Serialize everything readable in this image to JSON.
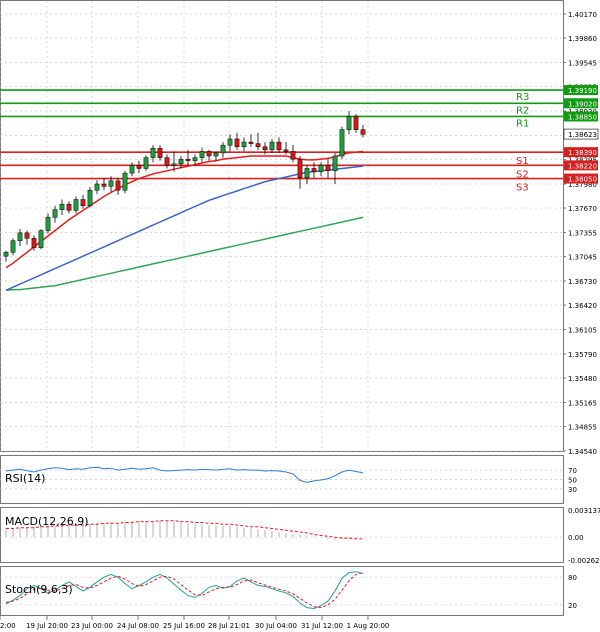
{
  "chart_data": [
    {
      "type": "candlestick",
      "panel": "main",
      "y_ticks": [
        "1.40170",
        "1.39860",
        "1.39545",
        "1.39235",
        "1.38920",
        "1.38605",
        "1.38295",
        "1.37980",
        "1.37670",
        "1.37355",
        "1.37045",
        "1.36730",
        "1.36420",
        "1.36105",
        "1.35790",
        "1.35480",
        "1.35165",
        "1.34855",
        "1.34540"
      ],
      "ylim": [
        1.345,
        1.4027
      ],
      "current_price": {
        "label": "1.38623",
        "value": 1.38623
      },
      "levels": [
        {
          "name": "R3",
          "label": "1.39190",
          "value": 1.3919,
          "color": "#119b11"
        },
        {
          "name": "R2",
          "label": "1.39020",
          "value": 1.3902,
          "color": "#119b11"
        },
        {
          "name": "R1",
          "label": "1.38850",
          "value": 1.3885,
          "color": "#119b11"
        },
        {
          "name": "S1",
          "label": "1.38390",
          "value": 1.3839,
          "color": "#d42020"
        },
        {
          "name": "S2",
          "label": "1.38220",
          "value": 1.3822,
          "color": "#d42020"
        },
        {
          "name": "S3",
          "label": "1.38050",
          "value": 1.3805,
          "color": "#d42020"
        }
      ],
      "x_labels": [
        "2:00",
        "19 Jul 20:00",
        "23 Jul 00:00",
        "24 Jul 08:00",
        "25 Jul 16:00",
        "28 Jul 21:01",
        "30 Jul 04:00",
        "31 Jul 12:00",
        "1 Aug 20:00"
      ],
      "colors": {
        "bull": "#1f9e3c",
        "bear": "#d81818",
        "ma_fast": "#e41c1c",
        "ma_mid": "#3b63c9",
        "ma_slow": "#2ea856",
        "grid": "#c8c8c8"
      },
      "candles": [
        [
          1.3705,
          1.3712,
          1.3698,
          1.371
        ],
        [
          1.371,
          1.3728,
          1.3706,
          1.3725
        ],
        [
          1.3725,
          1.374,
          1.3718,
          1.3735
        ],
        [
          1.3735,
          1.3738,
          1.372,
          1.3728
        ],
        [
          1.3728,
          1.3732,
          1.3712,
          1.3716
        ],
        [
          1.3716,
          1.374,
          1.3714,
          1.3738
        ],
        [
          1.3738,
          1.376,
          1.3734,
          1.3755
        ],
        [
          1.3755,
          1.377,
          1.3748,
          1.3765
        ],
        [
          1.3765,
          1.3778,
          1.3758,
          1.3772
        ],
        [
          1.3772,
          1.3776,
          1.376,
          1.3764
        ],
        [
          1.3764,
          1.3782,
          1.376,
          1.3778
        ],
        [
          1.3778,
          1.3784,
          1.3766,
          1.377
        ],
        [
          1.377,
          1.3794,
          1.3768,
          1.379
        ],
        [
          1.379,
          1.3803,
          1.3785,
          1.3798
        ],
        [
          1.3798,
          1.3806,
          1.379,
          1.3795
        ],
        [
          1.3795,
          1.3808,
          1.3788,
          1.3802
        ],
        [
          1.3802,
          1.3806,
          1.3784,
          1.379
        ],
        [
          1.379,
          1.3815,
          1.3786,
          1.3812
        ],
        [
          1.3812,
          1.3826,
          1.3808,
          1.3822
        ],
        [
          1.3822,
          1.3828,
          1.3812,
          1.3818
        ],
        [
          1.3818,
          1.3835,
          1.3815,
          1.3832
        ],
        [
          1.3832,
          1.3848,
          1.3826,
          1.3844
        ],
        [
          1.3844,
          1.3848,
          1.3828,
          1.3832
        ],
        [
          1.3832,
          1.3836,
          1.3818,
          1.3822
        ],
        [
          1.3822,
          1.384,
          1.3814,
          1.3824
        ],
        [
          1.3824,
          1.3834,
          1.3818,
          1.383
        ],
        [
          1.383,
          1.3842,
          1.3822,
          1.3828
        ],
        [
          1.3828,
          1.3836,
          1.3822,
          1.3832
        ],
        [
          1.3832,
          1.3845,
          1.3826,
          1.384
        ],
        [
          1.384,
          1.3842,
          1.3828,
          1.3834
        ],
        [
          1.3834,
          1.384,
          1.3828,
          1.3838
        ],
        [
          1.3838,
          1.3852,
          1.3832,
          1.3848
        ],
        [
          1.3848,
          1.3862,
          1.384,
          1.3856
        ],
        [
          1.3856,
          1.3864,
          1.3842,
          1.3846
        ],
        [
          1.3846,
          1.3858,
          1.384,
          1.3852
        ],
        [
          1.3852,
          1.3862,
          1.3846,
          1.385
        ],
        [
          1.385,
          1.3864,
          1.3842,
          1.3846
        ],
        [
          1.3846,
          1.3852,
          1.3836,
          1.3842
        ],
        [
          1.3842,
          1.3856,
          1.3838,
          1.3852
        ],
        [
          1.3852,
          1.3858,
          1.3838,
          1.3842
        ],
        [
          1.3842,
          1.3852,
          1.3836,
          1.384
        ],
        [
          1.384,
          1.3848,
          1.3826,
          1.383
        ],
        [
          1.383,
          1.3834,
          1.3792,
          1.3806
        ],
        [
          1.3806,
          1.3822,
          1.3798,
          1.3818
        ],
        [
          1.3818,
          1.3826,
          1.3806,
          1.3814
        ],
        [
          1.3814,
          1.3826,
          1.3808,
          1.3822
        ],
        [
          1.3822,
          1.383,
          1.3806,
          1.3815
        ],
        [
          1.3815,
          1.3838,
          1.3798,
          1.3834
        ],
        [
          1.3834,
          1.3872,
          1.383,
          1.3868
        ],
        [
          1.3868,
          1.3892,
          1.3862,
          1.3885
        ],
        [
          1.3885,
          1.3888,
          1.3864,
          1.3868
        ],
        [
          1.3868,
          1.3874,
          1.3858,
          1.3862
        ]
      ],
      "ma_fast": [
        1.369,
        1.3696,
        1.3703,
        1.371,
        1.3717,
        1.3724,
        1.3731,
        1.3738,
        1.3745,
        1.3752,
        1.3758,
        1.3764,
        1.377,
        1.3776,
        1.3782,
        1.3787,
        1.3792,
        1.3797,
        1.3801,
        1.3805,
        1.3808,
        1.3811,
        1.3813,
        1.3815,
        1.3817,
        1.3819,
        1.3821,
        1.3823,
        1.3825,
        1.3827,
        1.3828,
        1.383,
        1.3831,
        1.3832,
        1.3833,
        1.3834,
        1.3834,
        1.3834,
        1.3834,
        1.3834,
        1.3834,
        1.3832,
        1.383,
        1.3829,
        1.3829,
        1.383,
        1.3831,
        1.3833,
        1.3836,
        1.3838,
        1.3839,
        1.384
      ],
      "ma_mid": [
        1.3661,
        1.3665,
        1.3669,
        1.3673,
        1.3677,
        1.3681,
        1.3685,
        1.3689,
        1.3693,
        1.3697,
        1.3701,
        1.3705,
        1.3709,
        1.3713,
        1.3717,
        1.3721,
        1.3725,
        1.3729,
        1.3733,
        1.3737,
        1.3741,
        1.3745,
        1.3749,
        1.3753,
        1.3757,
        1.3761,
        1.3765,
        1.3769,
        1.3773,
        1.3777,
        1.378,
        1.3783,
        1.3786,
        1.3789,
        1.3792,
        1.3795,
        1.3798,
        1.3801,
        1.3803,
        1.3805,
        1.3807,
        1.3809,
        1.3811,
        1.3813,
        1.3814,
        1.3815,
        1.3816,
        1.3817,
        1.3818,
        1.3819,
        1.382,
        1.3821
      ],
      "ma_slow": [
        1.3661,
        1.3662,
        1.3662,
        1.3663,
        1.3664,
        1.3665,
        1.3666,
        1.3667,
        1.3669,
        1.3671,
        1.3673,
        1.3675,
        1.3677,
        1.3679,
        1.3681,
        1.3683,
        1.3685,
        1.3687,
        1.3689,
        1.3691,
        1.3693,
        1.3695,
        1.3697,
        1.3699,
        1.3701,
        1.3703,
        1.3705,
        1.3707,
        1.3709,
        1.3711,
        1.3713,
        1.3715,
        1.3717,
        1.3719,
        1.3721,
        1.3723,
        1.3725,
        1.3727,
        1.3729,
        1.3731,
        1.3733,
        1.3735,
        1.3737,
        1.3739,
        1.3741,
        1.3743,
        1.3745,
        1.3747,
        1.3749,
        1.3751,
        1.3753,
        1.3755
      ]
    },
    {
      "type": "line",
      "panel": "rsi",
      "name": "RSI(14)",
      "y_ticks": [
        "70",
        "50",
        "30"
      ],
      "ylim": [
        0,
        100
      ],
      "color": "#2f7fd6",
      "values": [
        68,
        70,
        72,
        69,
        66,
        70,
        73,
        75,
        74,
        71,
        73,
        72,
        75,
        76,
        73,
        74,
        70,
        72,
        74,
        72,
        73,
        75,
        70,
        68,
        69,
        70,
        71,
        70,
        72,
        71,
        70,
        72,
        73,
        70,
        71,
        70,
        70,
        68,
        69,
        68,
        66,
        62,
        48,
        44,
        47,
        49,
        52,
        58,
        66,
        70,
        67,
        64
      ]
    },
    {
      "type": "bar",
      "panel": "macd",
      "name": "MACD(12,26,9)",
      "y_ticks": [
        "0.003137",
        "0.00",
        "-0.002629"
      ],
      "ylim": [
        -0.002629,
        0.003137
      ],
      "histogram_color": "#b0b0b0",
      "signal_color": "#e02020",
      "histogram": [
        0.001,
        0.0011,
        0.0011,
        0.0011,
        0.0012,
        0.0012,
        0.0013,
        0.0013,
        0.0014,
        0.0014,
        0.0014,
        0.0015,
        0.0015,
        0.0016,
        0.0016,
        0.0017,
        0.0017,
        0.0017,
        0.0018,
        0.0018,
        0.0019,
        0.0019,
        0.0019,
        0.0019,
        0.0018,
        0.0017,
        0.0016,
        0.0016,
        0.0015,
        0.0014,
        0.0014,
        0.0013,
        0.0013,
        0.0012,
        0.0011,
        0.001,
        0.0009,
        0.0008,
        0.0007,
        0.0006,
        0.0005,
        0.0004,
        0.0003,
        0.0002,
        0.0001,
        0.0,
        -0.0002,
        -0.0003,
        -0.0002,
        -0.0001,
        -0.0001,
        0.0
      ],
      "signal": [
        0.001,
        0.001,
        0.0011,
        0.0011,
        0.0011,
        0.0012,
        0.0012,
        0.0013,
        0.0013,
        0.0014,
        0.0014,
        0.0014,
        0.0015,
        0.0015,
        0.0016,
        0.0016,
        0.0016,
        0.0017,
        0.0017,
        0.0018,
        0.0018,
        0.0018,
        0.0019,
        0.0019,
        0.0019,
        0.0018,
        0.0018,
        0.0017,
        0.0017,
        0.0016,
        0.0016,
        0.0015,
        0.0015,
        0.0014,
        0.0013,
        0.0012,
        0.0012,
        0.0011,
        0.001,
        0.0009,
        0.0008,
        0.0007,
        0.0006,
        0.0005,
        0.0003,
        0.0002,
        0.0001,
        0.0,
        -0.0001,
        -0.0001,
        -0.0002,
        -0.0002
      ]
    },
    {
      "type": "line",
      "panel": "stoch",
      "name": "Stoch(9,6,3)",
      "y_ticks": [
        "80",
        "20"
      ],
      "ylim": [
        0,
        100
      ],
      "main_color": "#20a0a0",
      "signal_color": "#e02020",
      "main": [
        22,
        30,
        40,
        55,
        62,
        55,
        45,
        52,
        62,
        70,
        60,
        50,
        58,
        70,
        80,
        86,
        80,
        66,
        55,
        62,
        70,
        80,
        86,
        78,
        65,
        52,
        40,
        36,
        45,
        58,
        62,
        56,
        60,
        72,
        78,
        70,
        62,
        60,
        55,
        50,
        46,
        38,
        24,
        14,
        12,
        18,
        28,
        50,
        78,
        90,
        92,
        88
      ],
      "signal": [
        25,
        28,
        34,
        44,
        54,
        56,
        52,
        50,
        55,
        62,
        64,
        58,
        56,
        62,
        70,
        78,
        82,
        76,
        66,
        60,
        64,
        72,
        80,
        82,
        76,
        64,
        52,
        42,
        40,
        48,
        55,
        58,
        58,
        64,
        72,
        74,
        68,
        63,
        58,
        54,
        50,
        44,
        34,
        24,
        16,
        14,
        20,
        32,
        52,
        72,
        86,
        90
      ]
    }
  ]
}
